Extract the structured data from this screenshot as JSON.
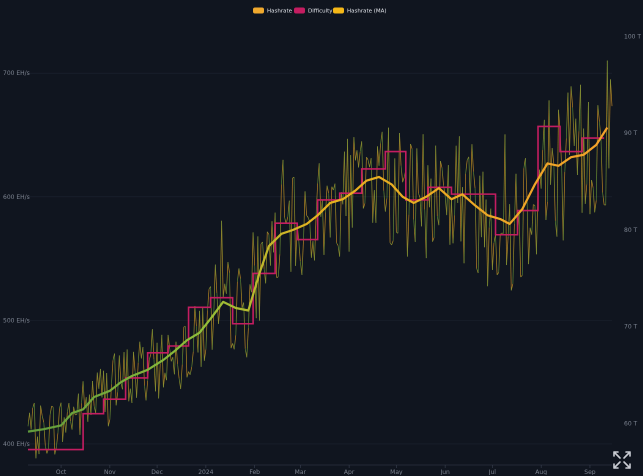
{
  "legend": [
    {
      "label": "Hashrate",
      "color": "#f0a92e"
    },
    {
      "label": "Difficulty",
      "color": "#c41d61"
    },
    {
      "label": "Hashrate (MA)",
      "color": "#f5b818"
    }
  ],
  "controls": {
    "expand_icon": "expand-arrows-icon"
  },
  "chart_data": {
    "type": "line",
    "y_left": {
      "ticks": [
        "400 EH/s",
        "500 EH/s",
        "600 EH/s",
        "700 EH/s"
      ],
      "values": [
        400,
        500,
        600,
        700
      ],
      "ylim": [
        383,
        743
      ]
    },
    "y_right": {
      "ticks": [
        "60 T",
        "70 T",
        "80 T",
        "90 T",
        "100 T"
      ],
      "values": [
        60,
        70,
        80,
        90,
        100
      ],
      "ylim": [
        55.7,
        101.7
      ]
    },
    "x_ticks": [
      "Oct",
      "Nov",
      "Dec",
      "2024",
      "Feb",
      "Mar",
      "Apr",
      "May",
      "Jun",
      "Jul",
      "Aug",
      "Sep"
    ],
    "x_range": [
      "2023-09-10",
      "2024-09-15"
    ],
    "x_tick_dates": [
      "2023-10-01",
      "2023-11-01",
      "2023-12-01",
      "2024-01-01",
      "2024-02-01",
      "2024-03-01",
      "2024-04-01",
      "2024-05-01",
      "2024-06-01",
      "2024-07-01",
      "2024-08-01",
      "2024-09-01"
    ],
    "grid": true,
    "legend_position": "top-center",
    "color_gradient": [
      "#5f9a3c",
      "#8fbf3a",
      "#e7b21f",
      "#f3a12a"
    ],
    "series": [
      {
        "name": "Difficulty",
        "axis": "right",
        "color": "#c41d61",
        "step": true,
        "points": [
          [
            "2023-09-10",
            57.3
          ],
          [
            "2023-10-01",
            57.3
          ],
          [
            "2023-10-15",
            61.0
          ],
          [
            "2023-10-28",
            62.5
          ],
          [
            "2023-11-11",
            64.7
          ],
          [
            "2023-11-25",
            67.3
          ],
          [
            "2023-12-08",
            68.0
          ],
          [
            "2023-12-21",
            72.0
          ],
          [
            "2024-01-04",
            73.0
          ],
          [
            "2024-01-18",
            70.3
          ],
          [
            "2024-01-31",
            75.5
          ],
          [
            "2024-02-14",
            80.7
          ],
          [
            "2024-02-28",
            79.0
          ],
          [
            "2024-03-12",
            83.1
          ],
          [
            "2024-03-26",
            83.8
          ],
          [
            "2024-04-09",
            86.3
          ],
          [
            "2024-04-24",
            88.1
          ],
          [
            "2024-05-07",
            83.1
          ],
          [
            "2024-05-21",
            84.4
          ],
          [
            "2024-06-05",
            83.7
          ],
          [
            "2024-06-19",
            83.7
          ],
          [
            "2024-07-03",
            79.5
          ],
          [
            "2024-07-17",
            82.0
          ],
          [
            "2024-07-30",
            90.7
          ],
          [
            "2024-08-13",
            88.1
          ],
          [
            "2024-08-27",
            89.5
          ],
          [
            "2024-09-10",
            89.5
          ]
        ]
      },
      {
        "name": "Hashrate (MA)",
        "axis": "left",
        "color": "#f5b818",
        "points": [
          [
            "2023-09-10",
            410
          ],
          [
            "2023-09-20",
            412
          ],
          [
            "2023-10-01",
            415
          ],
          [
            "2023-10-08",
            425
          ],
          [
            "2023-10-15",
            428
          ],
          [
            "2023-10-22",
            438
          ],
          [
            "2023-11-01",
            443
          ],
          [
            "2023-11-08",
            450
          ],
          [
            "2023-11-15",
            455
          ],
          [
            "2023-11-25",
            460
          ],
          [
            "2023-12-05",
            468
          ],
          [
            "2023-12-12",
            475
          ],
          [
            "2023-12-20",
            484
          ],
          [
            "2023-12-28",
            490
          ],
          [
            "2024-01-05",
            503
          ],
          [
            "2024-01-12",
            515
          ],
          [
            "2024-01-20",
            510
          ],
          [
            "2024-01-28",
            508
          ],
          [
            "2024-02-04",
            538
          ],
          [
            "2024-02-10",
            560
          ],
          [
            "2024-02-18",
            570
          ],
          [
            "2024-02-25",
            573
          ],
          [
            "2024-03-05",
            578
          ],
          [
            "2024-03-12",
            585
          ],
          [
            "2024-03-20",
            595
          ],
          [
            "2024-03-28",
            598
          ],
          [
            "2024-04-05",
            605
          ],
          [
            "2024-04-12",
            613
          ],
          [
            "2024-04-20",
            616
          ],
          [
            "2024-04-28",
            610
          ],
          [
            "2024-05-05",
            600
          ],
          [
            "2024-05-12",
            595
          ],
          [
            "2024-05-20",
            600
          ],
          [
            "2024-05-28",
            607
          ],
          [
            "2024-06-05",
            598
          ],
          [
            "2024-06-12",
            602
          ],
          [
            "2024-06-20",
            593
          ],
          [
            "2024-06-28",
            585
          ],
          [
            "2024-07-06",
            582
          ],
          [
            "2024-07-12",
            578
          ],
          [
            "2024-07-20",
            590
          ],
          [
            "2024-07-28",
            610
          ],
          [
            "2024-08-05",
            627
          ],
          [
            "2024-08-12",
            625
          ],
          [
            "2024-08-20",
            632
          ],
          [
            "2024-08-28",
            634
          ],
          [
            "2024-09-05",
            642
          ],
          [
            "2024-09-12",
            656
          ]
        ]
      }
    ]
  }
}
